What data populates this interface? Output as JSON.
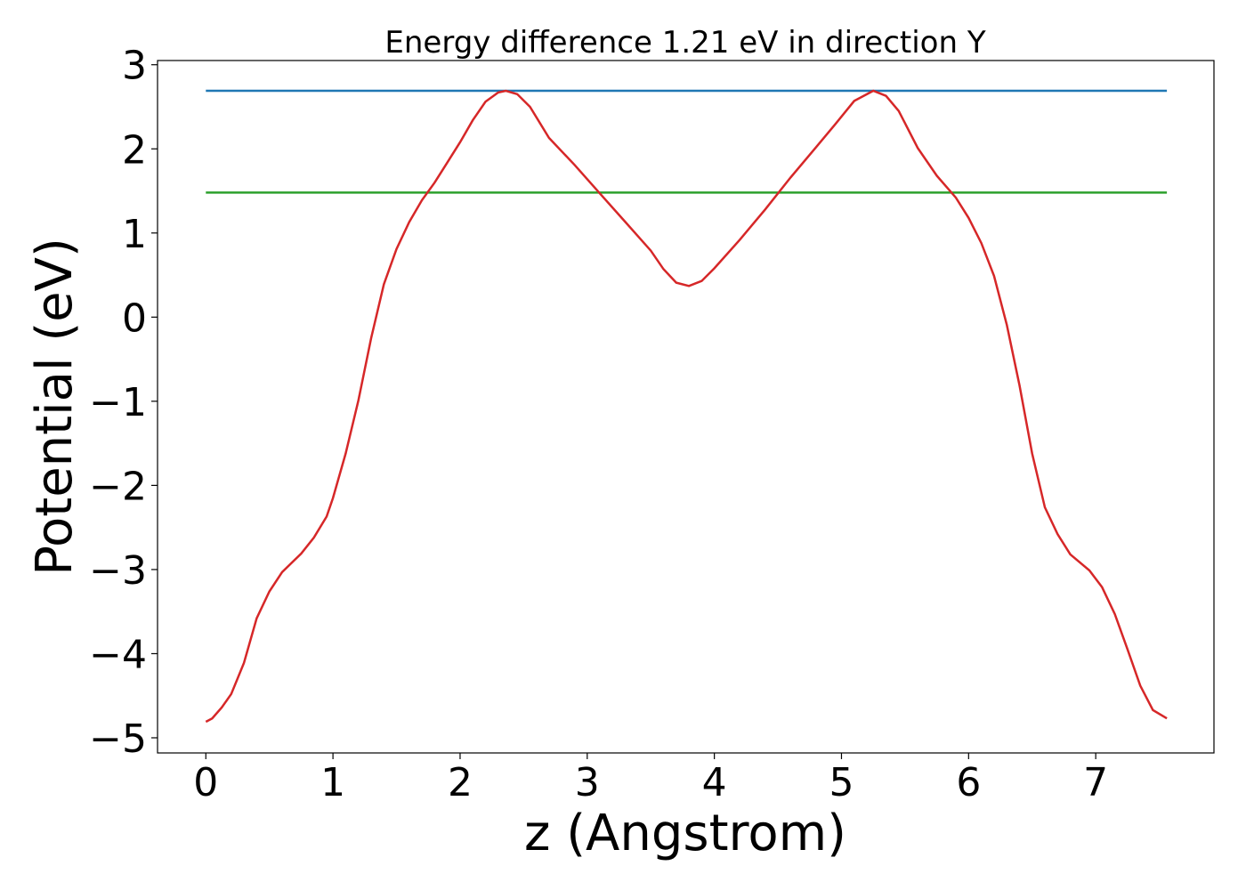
{
  "chart_data": {
    "type": "line",
    "title": "Energy difference 1.21 eV in direction Y",
    "x_label": "z (Angstrom)",
    "y_label": "Potential (eV)",
    "xlim": [
      -0.38,
      7.93
    ],
    "ylim": [
      -5.18,
      3.05
    ],
    "xticks": [
      0,
      1,
      2,
      3,
      4,
      5,
      6,
      7
    ],
    "yticks": [
      {
        "value": -5,
        "label": "−5"
      },
      {
        "value": -4,
        "label": "−4"
      },
      {
        "value": -3,
        "label": "−3"
      },
      {
        "value": -2,
        "label": "−2"
      },
      {
        "value": -1,
        "label": "−1"
      },
      0,
      1,
      2,
      3
    ],
    "series": [
      {
        "color": "#d62728",
        "x": [
          0,
          0.05,
          0.125,
          0.2,
          0.3,
          0.4,
          0.5,
          0.6,
          0.75,
          0.85,
          0.95,
          1.0,
          1.1,
          1.2,
          1.3,
          1.4,
          1.5,
          1.6,
          1.7,
          1.8,
          1.9,
          2.0,
          2.1,
          2.2,
          2.3,
          2.36,
          2.45,
          2.55,
          2.7,
          2.9,
          3.1,
          3.3,
          3.5,
          3.6,
          3.7,
          3.8,
          3.9,
          4.0,
          4.2,
          4.4,
          4.6,
          4.8,
          4.95,
          5.1,
          5.25,
          5.35,
          5.45,
          5.6,
          5.75,
          5.9,
          6.0,
          6.1,
          6.2,
          6.3,
          6.4,
          6.5,
          6.6,
          6.7,
          6.8,
          6.95,
          7.05,
          7.15,
          7.25,
          7.35,
          7.45,
          7.56
        ],
        "values": [
          -4.81,
          -4.77,
          -4.64,
          -4.48,
          -4.11,
          -3.58,
          -3.26,
          -3.03,
          -2.81,
          -2.62,
          -2.37,
          -2.15,
          -1.62,
          -0.99,
          -0.25,
          0.39,
          0.81,
          1.13,
          1.39,
          1.6,
          1.84,
          2.08,
          2.34,
          2.56,
          2.67,
          2.69,
          2.65,
          2.5,
          2.13,
          1.81,
          1.47,
          1.13,
          0.79,
          0.57,
          0.41,
          0.37,
          0.43,
          0.58,
          0.92,
          1.28,
          1.66,
          2.02,
          2.29,
          2.57,
          2.69,
          2.63,
          2.45,
          2.01,
          1.68,
          1.42,
          1.18,
          0.88,
          0.49,
          -0.09,
          -0.81,
          -1.62,
          -2.26,
          -2.58,
          -2.82,
          -3.01,
          -3.21,
          -3.53,
          -3.95,
          -4.38,
          -4.67,
          -4.77
        ]
      },
      {
        "color": "#1f77b4",
        "x": [
          0,
          7.56
        ],
        "values": [
          2.69,
          2.69
        ]
      },
      {
        "color": "#2ca02c",
        "x": [
          0,
          7.56
        ],
        "values": [
          1.48,
          1.48
        ]
      }
    ]
  }
}
